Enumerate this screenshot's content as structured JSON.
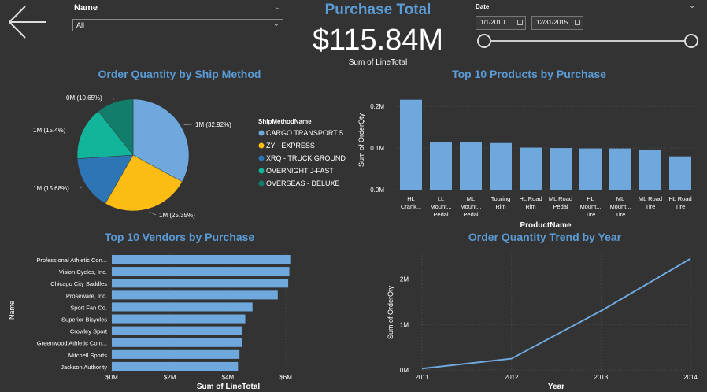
{
  "nav": {
    "back_icon": "arrow-left-icon"
  },
  "slicer_name": {
    "label": "Name",
    "value": "All"
  },
  "kpi": {
    "title": "Purchase Total",
    "value": "$115.84M",
    "label": "Sum of LineTotal"
  },
  "slicer_date": {
    "label": "Date",
    "start": "1/1/2010",
    "end": "12/31/2015"
  },
  "colors": {
    "bg": "#333333",
    "title": "#5b9bd5",
    "bar": "#6fa8dc",
    "pie": [
      "#6fa8dc",
      "#fbbc14",
      "#2e75b6",
      "#13b59a",
      "#127d6a"
    ]
  },
  "chart_data": [
    {
      "type": "pie",
      "title": "Order Quantity by Ship Method",
      "legend_title": "ShipMethodName",
      "legend_position": "right",
      "categories": [
        "CARGO TRANSPORT 5",
        "ZY - EXPRESS",
        "XRQ - TRUCK GROUND",
        "OVERNIGHT J-FAST",
        "OVERSEAS - DELUXE"
      ],
      "values": [
        32.92,
        25.35,
        15.68,
        15.4,
        10.65
      ],
      "data_labels": [
        "1M (32.92%)",
        "1M (25.35%)",
        "1M (15.68%)",
        "1M (15.4%)",
        "0M (10.65%)"
      ]
    },
    {
      "type": "bar",
      "title": "Top 10 Products by Purchase",
      "xlabel": "ProductName",
      "ylabel": "Sum of OrderQty",
      "categories": [
        [
          "HL",
          "Crank..."
        ],
        [
          "LL",
          "Mount...",
          "Pedal"
        ],
        [
          "ML",
          "Mount...",
          "Pedal"
        ],
        [
          "Touring",
          "Rim"
        ],
        [
          "HL Road",
          "Rim"
        ],
        [
          "ML Road",
          "Pedal"
        ],
        [
          "HL",
          "Mount...",
          "Tire"
        ],
        [
          "ML",
          "Mount...",
          "Tire"
        ],
        [
          "ML Road",
          "Tire"
        ],
        [
          "HL Road",
          "Tire"
        ]
      ],
      "values": [
        0.216,
        0.114,
        0.114,
        0.112,
        0.101,
        0.1,
        0.099,
        0.099,
        0.095,
        0.08
      ],
      "yticks": [
        "0.0M",
        "0.1M",
        "0.2M"
      ],
      "ylim": [
        0,
        0.24
      ]
    },
    {
      "type": "bar",
      "orientation": "horizontal",
      "title": "Top 10 Vendors by Purchase",
      "xlabel": "Sum of LineTotal",
      "ylabel": "Name",
      "categories": [
        "Professional Athletic Con...",
        "Vision Cycles, Inc.",
        "Chicago City Saddles",
        "Proseware, Inc.",
        "Sport Fan Co.",
        "Superior Bicycles",
        "Crowley Sport",
        "Greenwood Athletic Com...",
        "Mitchell Sports",
        "Jackson Authority"
      ],
      "values": [
        6.15,
        6.12,
        6.08,
        5.72,
        4.85,
        4.6,
        4.5,
        4.5,
        4.4,
        4.35
      ],
      "xticks": [
        "$0M",
        "$2M",
        "$4M",
        "$6M"
      ],
      "xlim": [
        0,
        7
      ]
    },
    {
      "type": "line",
      "title": "Order Quantity Trend by Year",
      "xlabel": "Year",
      "ylabel": "Sum of OrderQty",
      "x": [
        2011,
        2012,
        2013,
        2014
      ],
      "values": [
        0.03,
        0.25,
        1.3,
        2.45
      ],
      "xticks": [
        "2011",
        "2012",
        "2013",
        "2014"
      ],
      "yticks": [
        "0M",
        "1M",
        "2M"
      ],
      "ylim": [
        0,
        2.6
      ]
    }
  ]
}
